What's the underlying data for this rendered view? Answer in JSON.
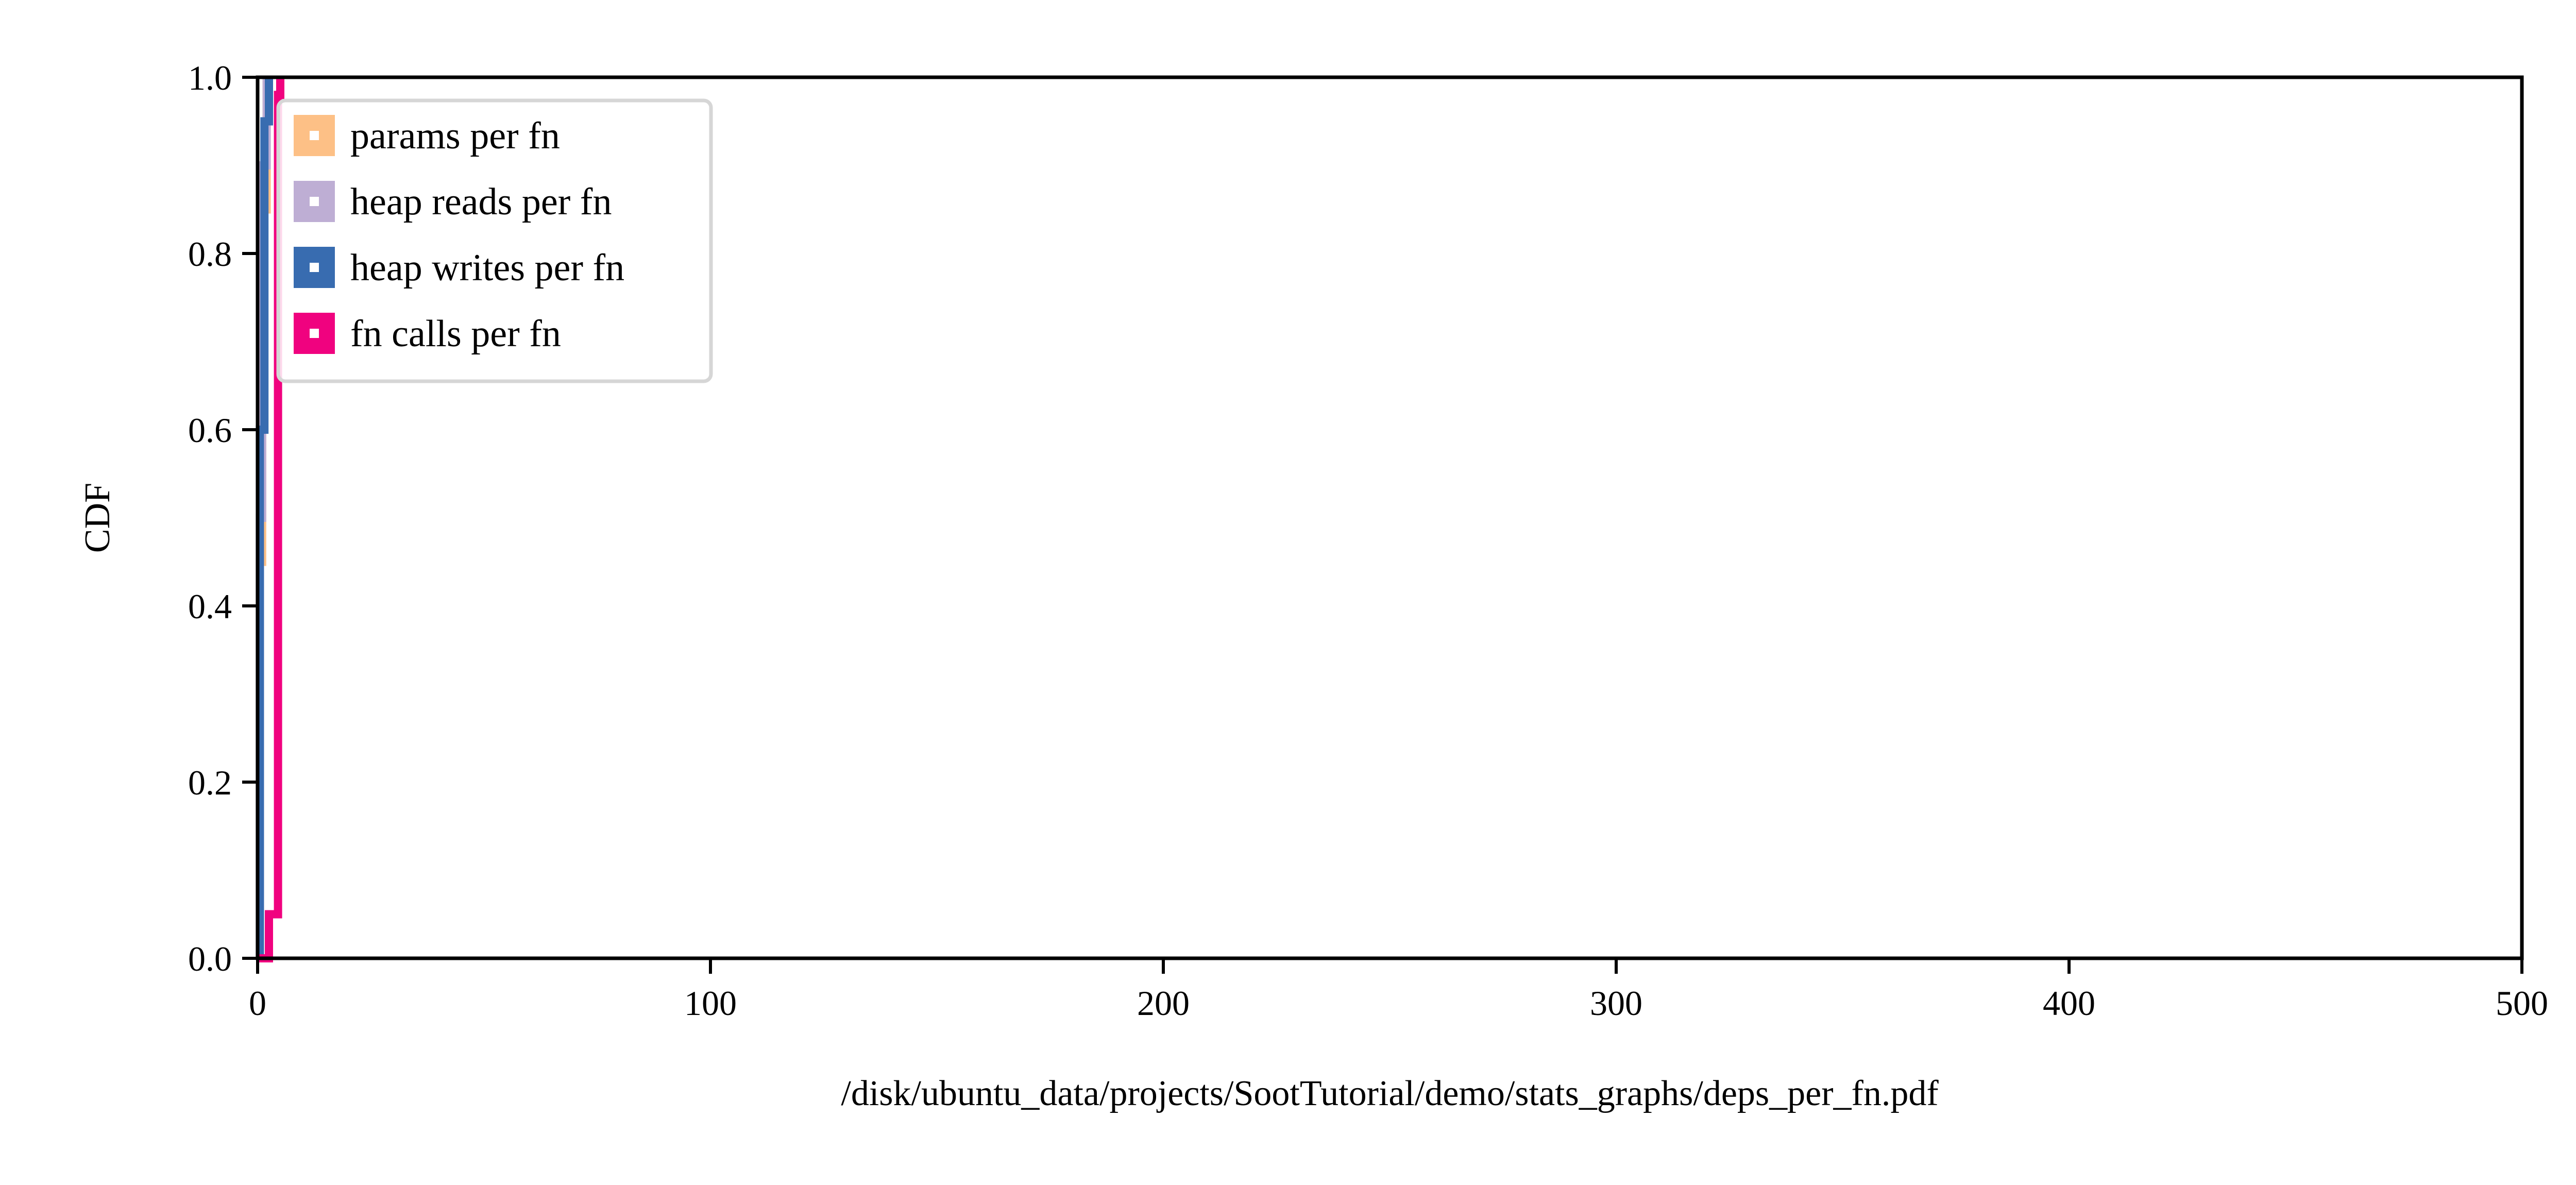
{
  "chart_data": {
    "type": "line",
    "title": "",
    "xlabel": "/disk/ubuntu_data/projects/SootTutorial/demo/stats_graphs/deps_per_fn.pdf",
    "ylabel": "CDF",
    "xlim": [
      0,
      500
    ],
    "ylim": [
      0.0,
      1.0
    ],
    "x_ticks": [
      "0",
      "100",
      "200",
      "300",
      "400",
      "500"
    ],
    "y_ticks": [
      "0.0",
      "0.2",
      "0.4",
      "0.6",
      "0.8",
      "1.0"
    ],
    "grid": false,
    "legend_position": "top-left",
    "series": [
      {
        "name": "params per fn",
        "color": "#fdc086",
        "x": [
          0,
          0.5,
          0.5,
          1,
          1,
          2,
          2
        ],
        "y": [
          0,
          0,
          0.45,
          0.45,
          0.85,
          0.85,
          1.0
        ]
      },
      {
        "name": "heap reads per fn",
        "color": "#beaed4",
        "x": [
          0,
          0.5,
          0.5,
          1,
          1,
          2,
          2
        ],
        "y": [
          0,
          0,
          0.5,
          0.5,
          0.9,
          0.9,
          1.0
        ]
      },
      {
        "name": "heap writes per fn",
        "color": "#386cb0",
        "x": [
          0,
          0.5,
          0.5,
          1.5,
          1.5,
          2.5,
          2.5
        ],
        "y": [
          0,
          0,
          0.6,
          0.6,
          0.95,
          0.95,
          1.0
        ]
      },
      {
        "name": "fn calls per fn",
        "color": "#f0027f",
        "x": [
          0,
          2.5,
          2.5,
          4.5,
          4.5,
          5,
          5
        ],
        "y": [
          0,
          0,
          0.05,
          0.05,
          0.98,
          0.98,
          1.0
        ]
      }
    ]
  }
}
